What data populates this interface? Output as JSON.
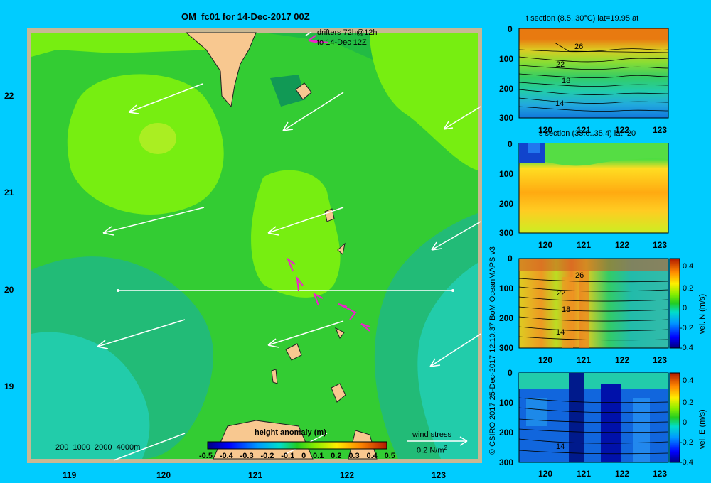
{
  "main_map": {
    "title": "OM_fc01 for 14-Dec-2017 00Z",
    "drifters_label_1": "drifters 72h@12h",
    "drifters_label_2": "to 14-Dec 12Z",
    "lat_ticks": [
      "22",
      "21",
      "20",
      "19"
    ],
    "lon_ticks": [
      "119",
      "120",
      "121",
      "122",
      "123"
    ],
    "depth_legend": "200  1000  2000  4000m",
    "wind_stress_label": "wind stress",
    "wind_stress_scale": "0.2 N/m",
    "wind_stress_exp": "2",
    "colorbar_title": "height anomaly (m)",
    "colorbar_ticks": [
      "-0.5",
      "-0.4",
      "-0.3",
      "-0.2",
      "-0.1",
      "0",
      "0.1",
      "0.2",
      "0.3",
      "0.4",
      "0.5"
    ]
  },
  "credit": "© CSIRO 2017   25-Dec-2017 12:10:37 BoM OceanMAPS v3",
  "panel_t": {
    "title": "t section (8.5..30°C) lat=19.95 at",
    "depth_ticks": [
      "0",
      "100",
      "200",
      "300"
    ],
    "lon_ticks": [
      "120",
      "121",
      "122",
      "123"
    ],
    "contour_labels": [
      "26",
      "22",
      "18",
      "14"
    ]
  },
  "panel_s": {
    "title": "s section (33.6..35.4) lat=20",
    "depth_ticks": [
      "0",
      "100",
      "200",
      "300"
    ],
    "lon_ticks": [
      "120",
      "121",
      "122",
      "123"
    ]
  },
  "panel_n": {
    "depth_ticks": [
      "0",
      "100",
      "200",
      "300"
    ],
    "lon_ticks": [
      "120",
      "121",
      "122",
      "123"
    ],
    "contour_labels": [
      "26",
      "22",
      "18",
      "14"
    ],
    "colorbar_label": "vel. N (m/s)",
    "colorbar_ticks": [
      "0.4",
      "0.2",
      "0",
      "-0.2",
      "-0.4"
    ]
  },
  "panel_e": {
    "depth_ticks": [
      "0",
      "100",
      "200",
      "300"
    ],
    "lon_ticks": [
      "120",
      "121",
      "122",
      "123"
    ],
    "contour_labels": [
      "14"
    ],
    "colorbar_label": "vel. E (m/s)",
    "colorbar_ticks": [
      "0.4",
      "0.2",
      "0",
      "-0.2",
      "-0.4"
    ]
  },
  "chart_data": [
    {
      "type": "heatmap",
      "title": "OM_fc01 for 14-Dec-2017 00Z",
      "variable": "height anomaly (m)",
      "color_range": [
        -0.5,
        0.5
      ],
      "xlim": [
        118.5,
        123.5
      ],
      "ylim": [
        18.3,
        22.7
      ],
      "x_ticks": [
        119,
        120,
        121,
        122,
        123
      ],
      "y_ticks": [
        19,
        20,
        21,
        22
      ],
      "section_line": {
        "lat": 20,
        "lon_range": [
          119.5,
          123.1
        ]
      },
      "wind_stress_vectors": "westward / south-westward",
      "drifters": "72h tracks to 14-Dec 12Z, heading north-west"
    },
    {
      "type": "heatmap",
      "title": "t section (8.5..30°C) lat=19.95 at",
      "variable": "temperature (°C)",
      "xlim": [
        119.5,
        123.2
      ],
      "ylim": [
        300,
        0
      ],
      "contours": [
        26,
        22,
        18,
        14
      ]
    },
    {
      "type": "heatmap",
      "title": "s section (33.6..35.4) lat=20",
      "variable": "salinity",
      "xlim": [
        119.5,
        123.2
      ],
      "ylim": [
        300,
        0
      ]
    },
    {
      "type": "heatmap",
      "variable": "vel. N (m/s)",
      "color_range": [
        -0.4,
        0.4
      ],
      "xlim": [
        119.5,
        123.2
      ],
      "ylim": [
        300,
        0
      ],
      "contours": [
        26,
        22,
        18,
        14
      ]
    },
    {
      "type": "heatmap",
      "variable": "vel. E (m/s)",
      "color_range": [
        -0.4,
        0.4
      ],
      "xlim": [
        119.5,
        123.2
      ],
      "ylim": [
        300,
        0
      ],
      "contours": [
        14
      ]
    }
  ]
}
